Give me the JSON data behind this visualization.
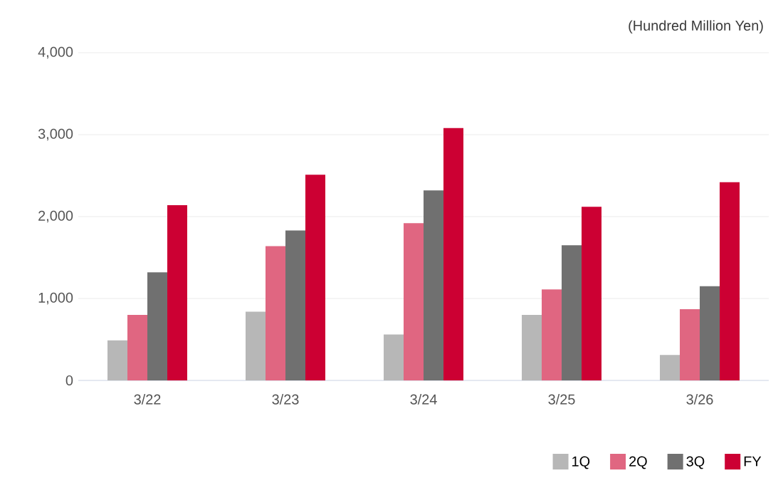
{
  "chart_data": {
    "type": "bar",
    "ylabel": "(Hundred Million Yen)",
    "categories": [
      "3/22",
      "3/23",
      "3/24",
      "3/25",
      "3/26"
    ],
    "series": [
      {
        "name": "1Q",
        "color": "#b7b7b7",
        "values": [
          490,
          840,
          560,
          800,
          310
        ]
      },
      {
        "name": "2Q",
        "color": "#e06681",
        "values": [
          800,
          1640,
          1920,
          1110,
          870
        ]
      },
      {
        "name": "3Q",
        "color": "#707070",
        "values": [
          1320,
          1830,
          2320,
          1650,
          1150
        ]
      },
      {
        "name": "FY",
        "color": "#cc0033",
        "values": [
          2140,
          2510,
          3080,
          2120,
          2420
        ]
      }
    ],
    "ylim": [
      0,
      4000
    ],
    "yticks": [
      {
        "value": 0,
        "label": "0"
      },
      {
        "value": 1000,
        "label": "1,000"
      },
      {
        "value": 2000,
        "label": "2,000"
      },
      {
        "value": 3000,
        "label": "3,000"
      },
      {
        "value": 4000,
        "label": "4,000"
      }
    ],
    "grid": "y",
    "legend": "bottom right"
  }
}
